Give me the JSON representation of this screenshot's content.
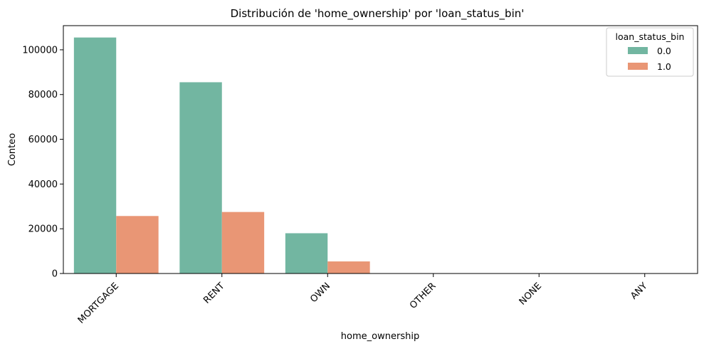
{
  "chart_data": {
    "type": "bar",
    "title": "Distribución de 'home_ownership' por 'loan_status_bin'",
    "xlabel": "home_ownership",
    "ylabel": "Conteo",
    "categories": [
      "MORTGAGE",
      "RENT",
      "OWN",
      "OTHER",
      "NONE",
      "ANY"
    ],
    "series": [
      {
        "name": "0.0",
        "color": "#72b6a1",
        "values": [
          105500,
          85500,
          18000,
          100,
          30,
          1
        ]
      },
      {
        "name": "1.0",
        "color": "#e99675",
        "values": [
          25700,
          27500,
          5400,
          20,
          5,
          0
        ]
      }
    ],
    "yticks": [
      0,
      20000,
      40000,
      60000,
      80000,
      100000
    ],
    "ytick_labels": [
      "0",
      "20000",
      "40000",
      "60000",
      "80000",
      "100000"
    ],
    "ylim": [
      0,
      110800
    ],
    "legend": {
      "title": "loan_status_bin",
      "placement": "top-right"
    },
    "grid": false
  }
}
